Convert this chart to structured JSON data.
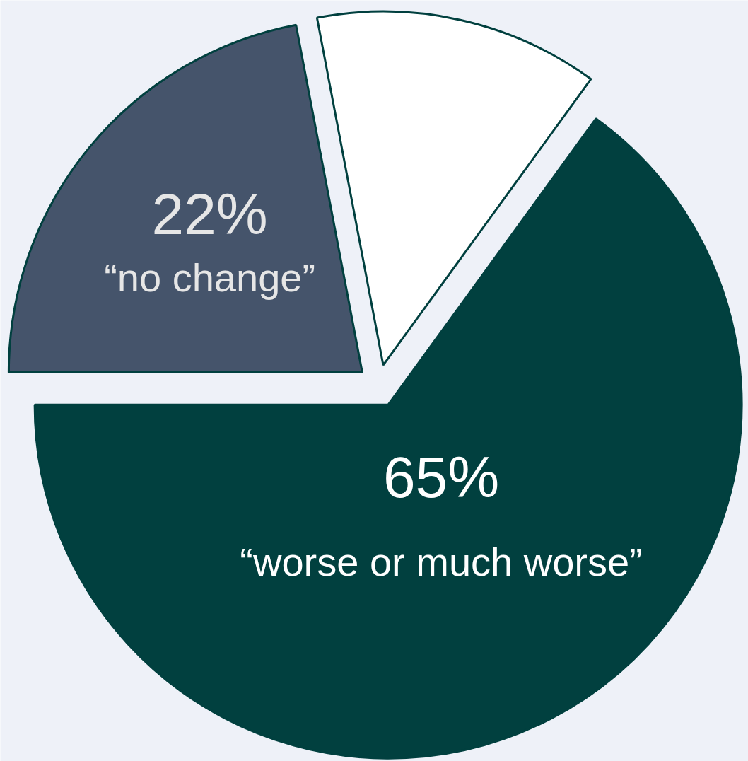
{
  "chart_data": {
    "type": "pie",
    "categories": [
      "“worse or much worse”",
      "“no change”",
      null
    ],
    "values": [
      65,
      22,
      13
    ],
    "colors": [
      "#01403f",
      "#45546b",
      "#ffffff"
    ],
    "value_labels": [
      "65%",
      "22%",
      null
    ]
  }
}
